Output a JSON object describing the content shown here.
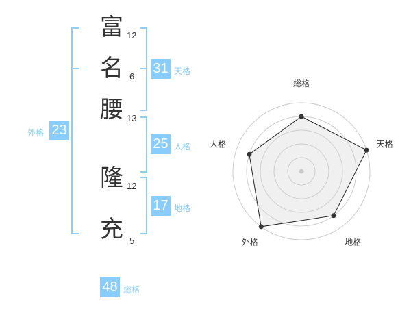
{
  "name": {
    "chars": [
      {
        "char": "富",
        "strokes": "12"
      },
      {
        "char": "名",
        "strokes": "6"
      },
      {
        "char": "腰",
        "strokes": "13"
      },
      {
        "char": "隆",
        "strokes": "12"
      },
      {
        "char": "充",
        "strokes": "5"
      }
    ]
  },
  "fortunes": {
    "tenkaku": {
      "label": "天格",
      "value": "31"
    },
    "jinkaku": {
      "label": "人格",
      "value": "25"
    },
    "chikaku": {
      "label": "地格",
      "value": "17"
    },
    "gaikaku": {
      "label": "外格",
      "value": "23"
    },
    "soukaku": {
      "label": "総格",
      "value": "48"
    }
  },
  "colors": {
    "accent": "#88cdfb",
    "bracket": "#8fcdf7",
    "polygon_fill": "#f0f0f0"
  },
  "chart_data": {
    "type": "radar",
    "axes": [
      "総格",
      "天格",
      "地格",
      "外格",
      "人格"
    ],
    "values": [
      4,
      5,
      4,
      5,
      4
    ],
    "range": [
      0,
      5
    ],
    "rings": 5
  }
}
